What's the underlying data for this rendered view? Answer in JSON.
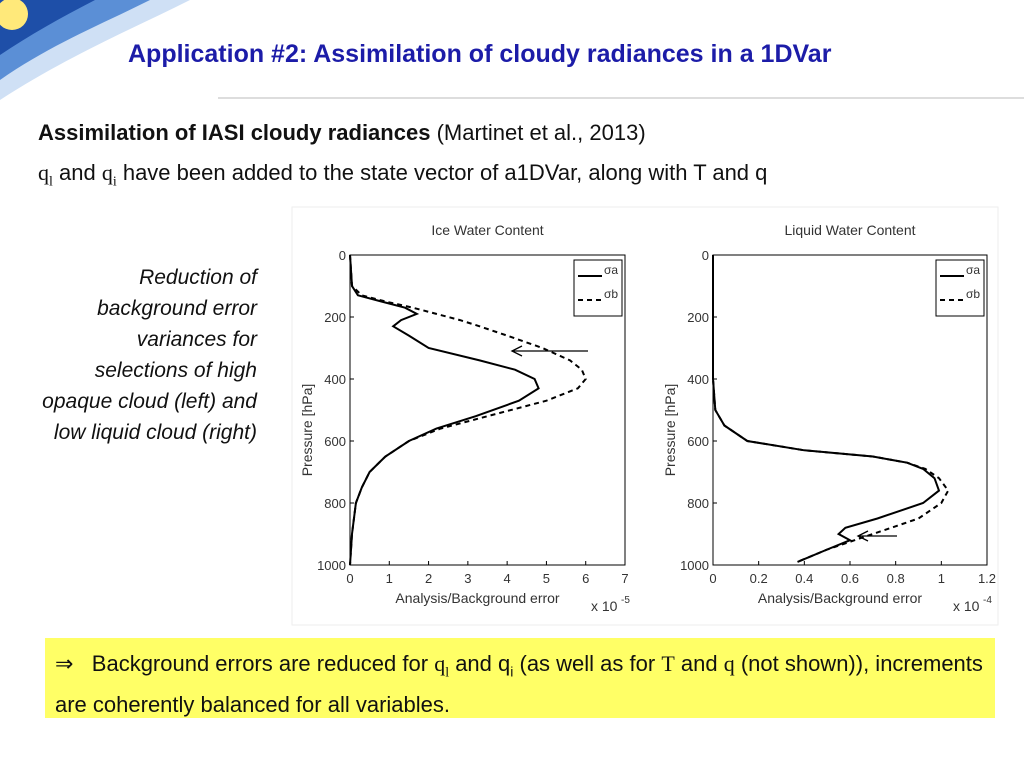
{
  "slide": {
    "title": "Application #2: Assimilation of cloudy radiances in a 1DVar",
    "subtitle_bold": "Assimilation of IASI cloudy radiances",
    "subtitle_ref": "(Martinet et al., 2013)",
    "line2": [
      "q",
      "l",
      " and ",
      "q",
      "i",
      " have been added to the state vector of a1DVar, along with T and q"
    ],
    "note": "Reduction of background error variances for selections of high opaque cloud (left) and low liquid cloud (right)",
    "conclusion": [
      "⇒",
      "Background errors are reduced for ",
      "q",
      "l",
      " and q",
      "i",
      " (as well as for ",
      "T",
      " and ",
      "q",
      " (not shown)), increments are coherently balanced for all variables."
    ]
  },
  "chart_data": [
    {
      "type": "line",
      "title": "Ice Water Content",
      "xlabel": "Analysis/Background error",
      "ylabel": "Pressure [hPa]",
      "x_multiplier": "x 10",
      "x_exponent": "-5",
      "xlim": [
        0,
        7
      ],
      "xticks": [
        0,
        1,
        2,
        3,
        4,
        5,
        6,
        7
      ],
      "ylim": [
        0,
        1000
      ],
      "yticks": [
        0,
        200,
        400,
        600,
        800,
        1000
      ],
      "y_reversed": true,
      "legend": "upper right",
      "y": [
        0,
        100,
        130,
        150,
        170,
        190,
        210,
        230,
        260,
        300,
        340,
        370,
        400,
        430,
        470,
        520,
        560,
        600,
        650,
        700,
        750,
        800,
        900,
        1000
      ],
      "series": [
        {
          "name": "σa",
          "color": "#000000",
          "dash": false,
          "values": [
            0,
            0.05,
            0.2,
            0.8,
            1.4,
            1.7,
            1.3,
            1.1,
            1.5,
            2.0,
            3.3,
            4.2,
            4.7,
            4.8,
            4.3,
            3.2,
            2.2,
            1.5,
            0.9,
            0.5,
            0.3,
            0.15,
            0.05,
            0
          ]
        },
        {
          "name": "σb",
          "color": "#000000",
          "dash": true,
          "values": [
            0,
            0.05,
            0.3,
            0.9,
            1.6,
            2.2,
            2.8,
            3.3,
            4.0,
            4.9,
            5.6,
            5.9,
            6.0,
            5.8,
            5.0,
            3.5,
            2.3,
            1.5,
            0.9,
            0.5,
            0.3,
            0.15,
            0.05,
            0
          ]
        }
      ]
    },
    {
      "type": "line",
      "title": "Liquid Water Content",
      "xlabel": "Analysis/Background error",
      "ylabel": "Pressure [hPa]",
      "x_multiplier": "x 10",
      "x_exponent": "-4",
      "xlim": [
        0,
        1.2
      ],
      "xticks": [
        0,
        0.2,
        0.4,
        0.6,
        0.8,
        1,
        1.2
      ],
      "ylim": [
        0,
        1000
      ],
      "yticks": [
        0,
        200,
        400,
        600,
        800,
        1000
      ],
      "y_reversed": true,
      "legend": "upper right",
      "y": [
        0,
        400,
        500,
        550,
        600,
        630,
        650,
        670,
        690,
        720,
        760,
        800,
        850,
        880,
        900,
        920,
        950,
        990
      ],
      "series": [
        {
          "name": "σa",
          "color": "#000000",
          "dash": false,
          "values": [
            0,
            0,
            0.01,
            0.05,
            0.15,
            0.4,
            0.7,
            0.85,
            0.92,
            0.97,
            0.99,
            0.92,
            0.72,
            0.58,
            0.55,
            0.6,
            0.5,
            0.37
          ]
        },
        {
          "name": "σb",
          "color": "#000000",
          "dash": true,
          "values": [
            0,
            0,
            0.01,
            0.05,
            0.15,
            0.4,
            0.7,
            0.85,
            0.93,
            0.99,
            1.03,
            1.0,
            0.9,
            0.78,
            0.7,
            0.62,
            0.5,
            0.37
          ]
        }
      ]
    }
  ]
}
